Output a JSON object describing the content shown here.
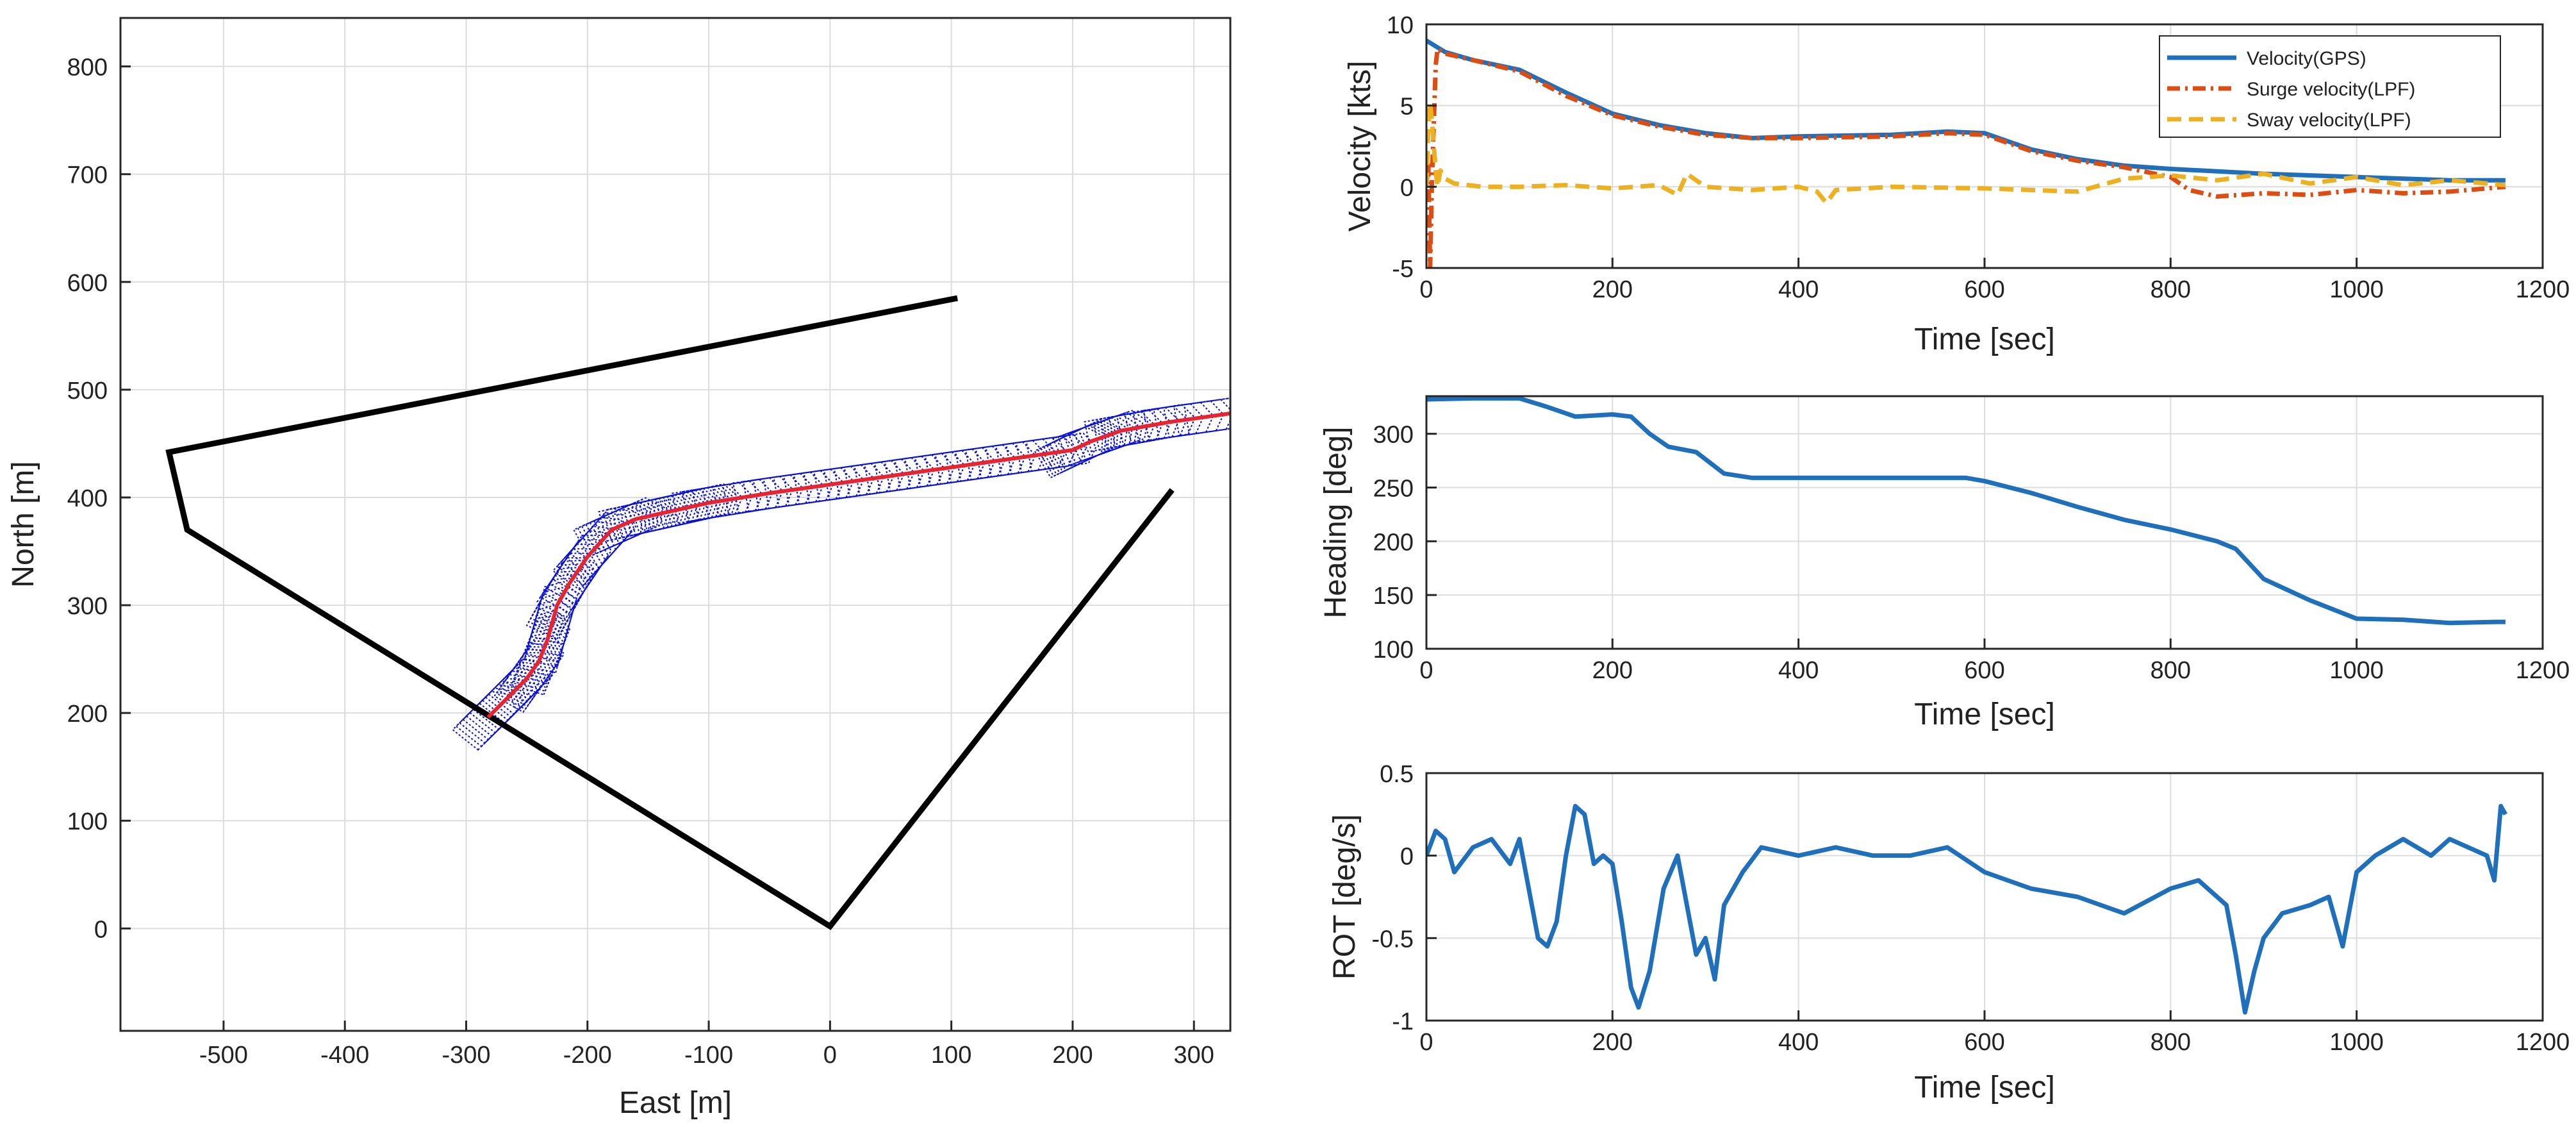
{
  "charts": [
    {
      "id": "trajectory",
      "type": "line",
      "xlabel": "East [m]",
      "ylabel": "North [m]",
      "xlim": [
        -585,
        330
      ],
      "ylim": [
        -95,
        845
      ],
      "xticks": [
        -500,
        -400,
        -300,
        -200,
        -100,
        0,
        100,
        200,
        300
      ],
      "yticks": [
        0,
        100,
        200,
        300,
        400,
        500,
        600,
        700,
        800
      ],
      "xtick_labels": [
        "-500",
        "-400",
        "-300",
        "-200",
        "-100",
        "0",
        "100",
        "200",
        "300"
      ],
      "ytick_labels": [
        "0",
        "100",
        "200",
        "300",
        "400",
        "500",
        "600",
        "700",
        "800"
      ],
      "boundary": {
        "color": "#000000",
        "x": [
          105,
          -545,
          -530,
          0,
          282
        ],
        "y": [
          585,
          442,
          370,
          2,
          407
        ]
      },
      "track": {
        "color": "#e8242f",
        "x": [
          -282,
          -265,
          -250,
          -240,
          -233,
          -225,
          -215,
          -200,
          -180,
          -160,
          -140,
          -120,
          -100,
          -50,
          0,
          50,
          100,
          150,
          200,
          215,
          240,
          280,
          330
        ],
        "y": [
          196,
          215,
          232,
          248,
          268,
          300,
          320,
          345,
          370,
          380,
          385,
          390,
          395,
          404,
          412,
          420,
          428,
          436,
          444,
          452,
          462,
          470,
          478
        ]
      },
      "footprint_color": "#0b12d6"
    },
    {
      "id": "velocity",
      "type": "line",
      "xlabel": "Time [sec]",
      "ylabel": "Velocity [kts]",
      "xlim": [
        0,
        1200
      ],
      "ylim": [
        -5,
        10
      ],
      "xticks": [
        0,
        200,
        400,
        600,
        800,
        1000,
        1200
      ],
      "yticks": [
        -5,
        0,
        5,
        10
      ],
      "xtick_labels": [
        "0",
        "200",
        "400",
        "600",
        "800",
        "1000",
        "1200"
      ],
      "ytick_labels": [
        "-5",
        "0",
        "5",
        "10"
      ],
      "legend_position": "top-right",
      "series": [
        {
          "name": "Velocity(GPS)",
          "color": "#1f6fba",
          "style": "solid",
          "t": [
            0,
            20,
            50,
            100,
            150,
            200,
            250,
            300,
            350,
            400,
            500,
            560,
            600,
            650,
            700,
            750,
            800,
            900,
            1000,
            1100,
            1160
          ],
          "v": [
            9.0,
            8.3,
            7.8,
            7.2,
            5.8,
            4.5,
            3.8,
            3.3,
            3.0,
            3.1,
            3.2,
            3.4,
            3.3,
            2.3,
            1.7,
            1.3,
            1.1,
            0.8,
            0.6,
            0.4,
            0.4
          ]
        },
        {
          "name": "Surge velocity(LPF)",
          "color": "#dc4d13",
          "style": "dashdot",
          "t": [
            0,
            2,
            4,
            6,
            8,
            10,
            12,
            20,
            50,
            100,
            150,
            200,
            250,
            300,
            350,
            400,
            500,
            560,
            600,
            650,
            700,
            750,
            800,
            820,
            850,
            900,
            950,
            1000,
            1050,
            1100,
            1160
          ],
          "v": [
            0,
            1.5,
            -5.0,
            0.5,
            4.0,
            7.5,
            8.5,
            8.2,
            7.8,
            7.1,
            5.6,
            4.4,
            3.7,
            3.2,
            3.0,
            3.0,
            3.1,
            3.3,
            3.2,
            2.2,
            1.6,
            1.2,
            0.6,
            -0.2,
            -0.6,
            -0.4,
            -0.5,
            -0.2,
            -0.4,
            -0.3,
            0.0
          ]
        },
        {
          "name": "Sway velocity(LPF)",
          "color": "#edb020",
          "style": "dashed",
          "t": [
            0,
            2,
            4,
            6,
            8,
            10,
            12,
            15,
            20,
            30,
            60,
            100,
            150,
            200,
            250,
            270,
            280,
            300,
            350,
            400,
            420,
            430,
            440,
            500,
            600,
            700,
            750,
            800,
            850,
            900,
            950,
            1000,
            1050,
            1100,
            1160
          ],
          "v": [
            0,
            3.5,
            5.2,
            4.0,
            2.5,
            1.0,
            0.0,
            1.0,
            0.5,
            0.2,
            0.0,
            0.0,
            0.1,
            -0.1,
            0.1,
            -0.5,
            0.8,
            0.0,
            -0.2,
            0.0,
            -0.3,
            -1.0,
            -0.2,
            0.0,
            -0.1,
            -0.3,
            0.5,
            0.7,
            0.4,
            0.8,
            0.2,
            0.6,
            0.1,
            0.4,
            0.1
          ]
        }
      ]
    },
    {
      "id": "heading",
      "type": "line",
      "xlabel": "Time [sec]",
      "ylabel": "Heading [deg]",
      "xlim": [
        0,
        1200
      ],
      "ylim": [
        100,
        335
      ],
      "xticks": [
        0,
        200,
        400,
        600,
        800,
        1000,
        1200
      ],
      "yticks": [
        100,
        150,
        200,
        250,
        300
      ],
      "xtick_labels": [
        "0",
        "200",
        "400",
        "600",
        "800",
        "1000",
        "1200"
      ],
      "ytick_labels": [
        "100",
        "150",
        "200",
        "250",
        "300"
      ],
      "series": [
        {
          "name": "Heading",
          "color": "#1f6fba",
          "style": "solid",
          "t": [
            0,
            50,
            100,
            130,
            160,
            200,
            220,
            240,
            260,
            290,
            320,
            350,
            400,
            500,
            580,
            600,
            650,
            700,
            750,
            800,
            850,
            870,
            900,
            950,
            1000,
            1050,
            1100,
            1150,
            1160
          ],
          "v": [
            332,
            333,
            333,
            325,
            316,
            318,
            316,
            300,
            288,
            283,
            263,
            259,
            259,
            259,
            259,
            256,
            245,
            232,
            220,
            211,
            200,
            193,
            165,
            145,
            128,
            127,
            124,
            125,
            125
          ]
        }
      ]
    },
    {
      "id": "rot",
      "type": "line",
      "xlabel": "Time [sec]",
      "ylabel": "ROT [deg/s]",
      "xlim": [
        0,
        1200
      ],
      "ylim": [
        -1,
        0.5
      ],
      "xticks": [
        0,
        200,
        400,
        600,
        800,
        1000,
        1200
      ],
      "yticks": [
        -1,
        -0.5,
        0,
        0.5
      ],
      "xtick_labels": [
        "0",
        "200",
        "400",
        "600",
        "800",
        "1000",
        "1200"
      ],
      "ytick_labels": [
        "-1",
        "-0.5",
        "0",
        "0.5"
      ],
      "series": [
        {
          "name": "ROT",
          "color": "#1f6fba",
          "style": "solid",
          "t": [
            0,
            10,
            20,
            30,
            50,
            70,
            90,
            100,
            110,
            120,
            130,
            140,
            150,
            160,
            170,
            180,
            190,
            200,
            210,
            220,
            228,
            240,
            255,
            270,
            280,
            290,
            300,
            310,
            320,
            340,
            360,
            400,
            440,
            480,
            520,
            560,
            600,
            650,
            700,
            750,
            800,
            830,
            860,
            870,
            880,
            890,
            900,
            920,
            950,
            970,
            985,
            1000,
            1020,
            1050,
            1080,
            1100,
            1120,
            1140,
            1148,
            1155,
            1160
          ],
          "v": [
            0,
            0.15,
            0.1,
            -0.1,
            0.05,
            0.1,
            -0.05,
            0.1,
            -0.2,
            -0.5,
            -0.55,
            -0.4,
            0.0,
            0.3,
            0.25,
            -0.05,
            0.0,
            -0.05,
            -0.4,
            -0.8,
            -0.92,
            -0.7,
            -0.2,
            0.0,
            -0.3,
            -0.6,
            -0.5,
            -0.75,
            -0.3,
            -0.1,
            0.05,
            0.0,
            0.05,
            0.0,
            0.0,
            0.05,
            -0.1,
            -0.2,
            -0.25,
            -0.35,
            -0.2,
            -0.15,
            -0.3,
            -0.6,
            -0.95,
            -0.7,
            -0.5,
            -0.35,
            -0.3,
            -0.25,
            -0.55,
            -0.1,
            0.0,
            0.1,
            0.0,
            0.1,
            0.05,
            0.0,
            -0.15,
            0.3,
            0.25
          ]
        }
      ]
    }
  ]
}
